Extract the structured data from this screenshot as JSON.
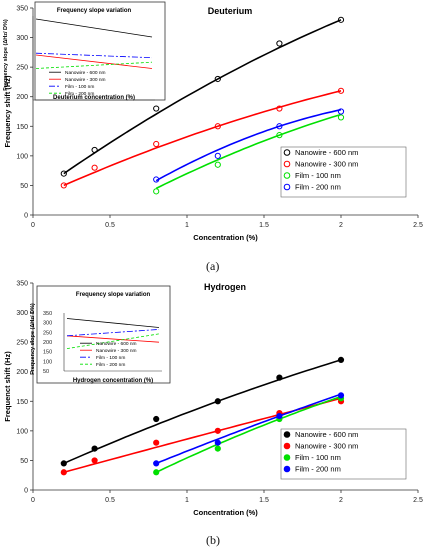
{
  "figure": {
    "caption_a": "(a)",
    "caption_b": "(b)"
  },
  "chart_data": [
    {
      "type": "scatter",
      "title": "Deuterium",
      "xlabel": "Concentration (%)",
      "ylabel": "Frequency shift (Hz)",
      "xlim": [
        0,
        2.5
      ],
      "ylim": [
        0,
        350
      ],
      "xticks": [
        "0",
        "0.5",
        "1",
        "1.5",
        "2",
        "2.5"
      ],
      "yticks": [
        "0",
        "50",
        "100",
        "150",
        "200",
        "250",
        "300",
        "350"
      ],
      "grid": false,
      "legend_position": "bottom-right",
      "marker": "open-circle",
      "series": [
        {
          "name": "Nanowire - 600 nm",
          "color": "#000000",
          "x": [
            0.2,
            0.4,
            0.8,
            1.2,
            1.6,
            2.0
          ],
          "y": [
            70,
            110,
            180,
            230,
            290,
            330
          ],
          "fit": [
            70,
            330
          ]
        },
        {
          "name": "Nanowire - 300 nm",
          "color": "#ff0000",
          "x": [
            0.2,
            0.4,
            0.8,
            1.2,
            1.6,
            2.0
          ],
          "y": [
            50,
            80,
            120,
            150,
            180,
            210
          ],
          "fit": [
            50,
            210
          ]
        },
        {
          "name": "Film - 100 nm",
          "color": "#00e000",
          "x": [
            0.8,
            1.2,
            1.6,
            2.0
          ],
          "y": [
            40,
            85,
            135,
            165
          ],
          "fit": [
            45,
            170
          ]
        },
        {
          "name": "Film - 200 nm",
          "color": "#0000ff",
          "x": [
            0.8,
            1.2,
            1.6,
            2.0
          ],
          "y": [
            60,
            100,
            150,
            175
          ],
          "fit": [
            58,
            178
          ]
        }
      ],
      "inset": {
        "title": "Frequency slope variation",
        "xlabel": "Deuterium concentration (%)",
        "ylabel": "Frequency slope (ΔHz/ D%)",
        "legend": [
          "Nanowire - 600 nm",
          "Nanowire - 300 nm",
          "Film - 100 nm",
          "Film - 200 nm"
        ],
        "lines": [
          {
            "color": "#000000",
            "dash": "",
            "y0": 0.9,
            "y1": 0.7
          },
          {
            "color": "#ff0000",
            "dash": "",
            "y0": 0.5,
            "y1": 0.35
          },
          {
            "color": "#0000ff",
            "dash": "6,2,2,2",
            "y0": 0.52,
            "y1": 0.47
          },
          {
            "color": "#00e000",
            "dash": "3,2",
            "y0": 0.35,
            "y1": 0.42
          }
        ]
      }
    },
    {
      "type": "scatter",
      "title": "Hydrogen",
      "xlabel": "Concentration (%)",
      "ylabel": "Frequenct shift (Hz)",
      "xlim": [
        0,
        2.5
      ],
      "ylim": [
        0,
        350
      ],
      "xticks": [
        "0",
        "0.5",
        "1",
        "1.5",
        "2",
        "2.5"
      ],
      "yticks": [
        "0",
        "50",
        "100",
        "150",
        "200",
        "250",
        "300",
        "350"
      ],
      "grid": false,
      "legend_position": "bottom-right",
      "marker": "filled-circle",
      "series": [
        {
          "name": "Nanowire - 600 nm",
          "color": "#000000",
          "x": [
            0.2,
            0.4,
            0.8,
            1.2,
            1.6,
            2.0
          ],
          "y": [
            45,
            70,
            120,
            150,
            190,
            220
          ],
          "fit": [
            45,
            220
          ]
        },
        {
          "name": "Nanowire - 300 nm",
          "color": "#ff0000",
          "x": [
            0.2,
            0.4,
            0.8,
            1.2,
            1.6,
            2.0
          ],
          "y": [
            30,
            50,
            80,
            100,
            130,
            150
          ],
          "fit": [
            30,
            155
          ]
        },
        {
          "name": "Film - 100 nm",
          "color": "#00e000",
          "x": [
            0.8,
            1.2,
            1.6,
            2.0
          ],
          "y": [
            30,
            70,
            120,
            155
          ],
          "fit": [
            30,
            158
          ]
        },
        {
          "name": "Film - 200 nm",
          "color": "#0000ff",
          "x": [
            0.8,
            1.2,
            1.6,
            2.0
          ],
          "y": [
            45,
            80,
            125,
            160
          ],
          "fit": [
            45,
            162
          ]
        }
      ],
      "inset": {
        "title": "Frequency slope variation",
        "xlabel": "Hydrogen concentration (%)",
        "ylabel": "Frequency slope (ΔHz/ D%)",
        "yticks": [
          "350",
          "300",
          "250",
          "200",
          "150",
          "100",
          "50"
        ],
        "legend": [
          "Nanowire - 600 nm",
          "Nanowire - 300 nm",
          "Film - 100 nm",
          "Film - 200 nm"
        ],
        "lines": [
          {
            "color": "#000000",
            "dash": "",
            "y0": 0.82,
            "y1": 0.68
          },
          {
            "color": "#ff0000",
            "dash": "",
            "y0": 0.55,
            "y1": 0.45
          },
          {
            "color": "#0000ff",
            "dash": "6,2,2,2",
            "y0": 0.55,
            "y1": 0.65
          },
          {
            "color": "#00e000",
            "dash": "3,2",
            "y0": 0.35,
            "y1": 0.58
          }
        ]
      }
    }
  ]
}
